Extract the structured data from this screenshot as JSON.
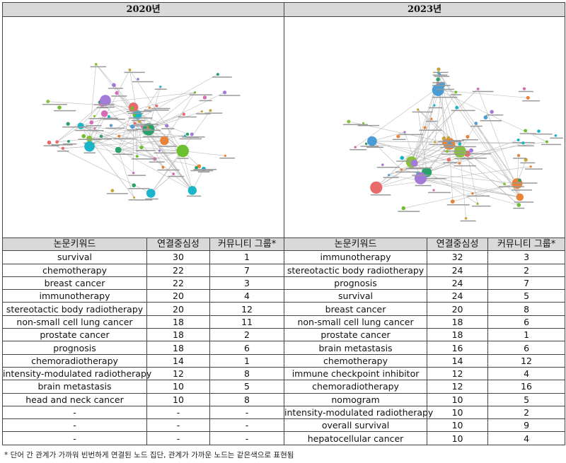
{
  "panels": [
    {
      "year": "2020년"
    },
    {
      "year": "2023년"
    }
  ],
  "headers": [
    "논문키워드",
    "연결중심성",
    "커뮤니티 그룹*"
  ],
  "rows_2020": [
    [
      "survival",
      "30",
      "1"
    ],
    [
      "chemotherapy",
      "22",
      "7"
    ],
    [
      "breast cancer",
      "22",
      "3"
    ],
    [
      "immunotherapy",
      "20",
      "4"
    ],
    [
      "stereotactic body radiotherapy",
      "20",
      "12"
    ],
    [
      "non-small cell lung cancer",
      "18",
      "11"
    ],
    [
      "prostate cancer",
      "18",
      "2"
    ],
    [
      "prognosis",
      "18",
      "6"
    ],
    [
      "chemoradiotherapy",
      "14",
      "1"
    ],
    [
      "intensity-modulated radiotherapy",
      "12",
      "8"
    ],
    [
      "brain metastasis",
      "10",
      "5"
    ],
    [
      "head and neck cancer",
      "10",
      "8"
    ],
    [
      "-",
      "-",
      "-"
    ],
    [
      "-",
      "-",
      "-"
    ],
    [
      "-",
      "-",
      "-"
    ]
  ],
  "rows_2023": [
    [
      "immunotherapy",
      "32",
      "3"
    ],
    [
      "stereotactic body radiotherapy",
      "24",
      "2"
    ],
    [
      "prognosis",
      "24",
      "7"
    ],
    [
      "survival",
      "24",
      "5"
    ],
    [
      "breast cancer",
      "20",
      "8"
    ],
    [
      "non-small cell lung cancer",
      "18",
      "6"
    ],
    [
      "prostate cancer",
      "18",
      "1"
    ],
    [
      "brain metastasis",
      "16",
      "6"
    ],
    [
      "chemotherapy",
      "14",
      "12"
    ],
    [
      "immune checkpoint inhibitor",
      "12",
      "4"
    ],
    [
      "chemoradiotherapy",
      "12",
      "16"
    ],
    [
      "nomogram",
      "10",
      "5"
    ],
    [
      "intensity-modulated radiotherapy",
      "10",
      "2"
    ],
    [
      "overall survival",
      "10",
      "9"
    ],
    [
      "hepatocellular cancer",
      "10",
      "4"
    ]
  ],
  "footnote": "* 단어 간 관계가 가까워 빈번하게 연결된 노드 집단, 관계가 가까운 노드는 같은색으로 표현됨",
  "node_colors": [
    "#e8833a",
    "#6cbf2f",
    "#1bb5c9",
    "#c7a43a",
    "#e86a6a",
    "#4a9cd6",
    "#a37ad8",
    "#d86ab8",
    "#89c23a",
    "#2aa36a"
  ]
}
